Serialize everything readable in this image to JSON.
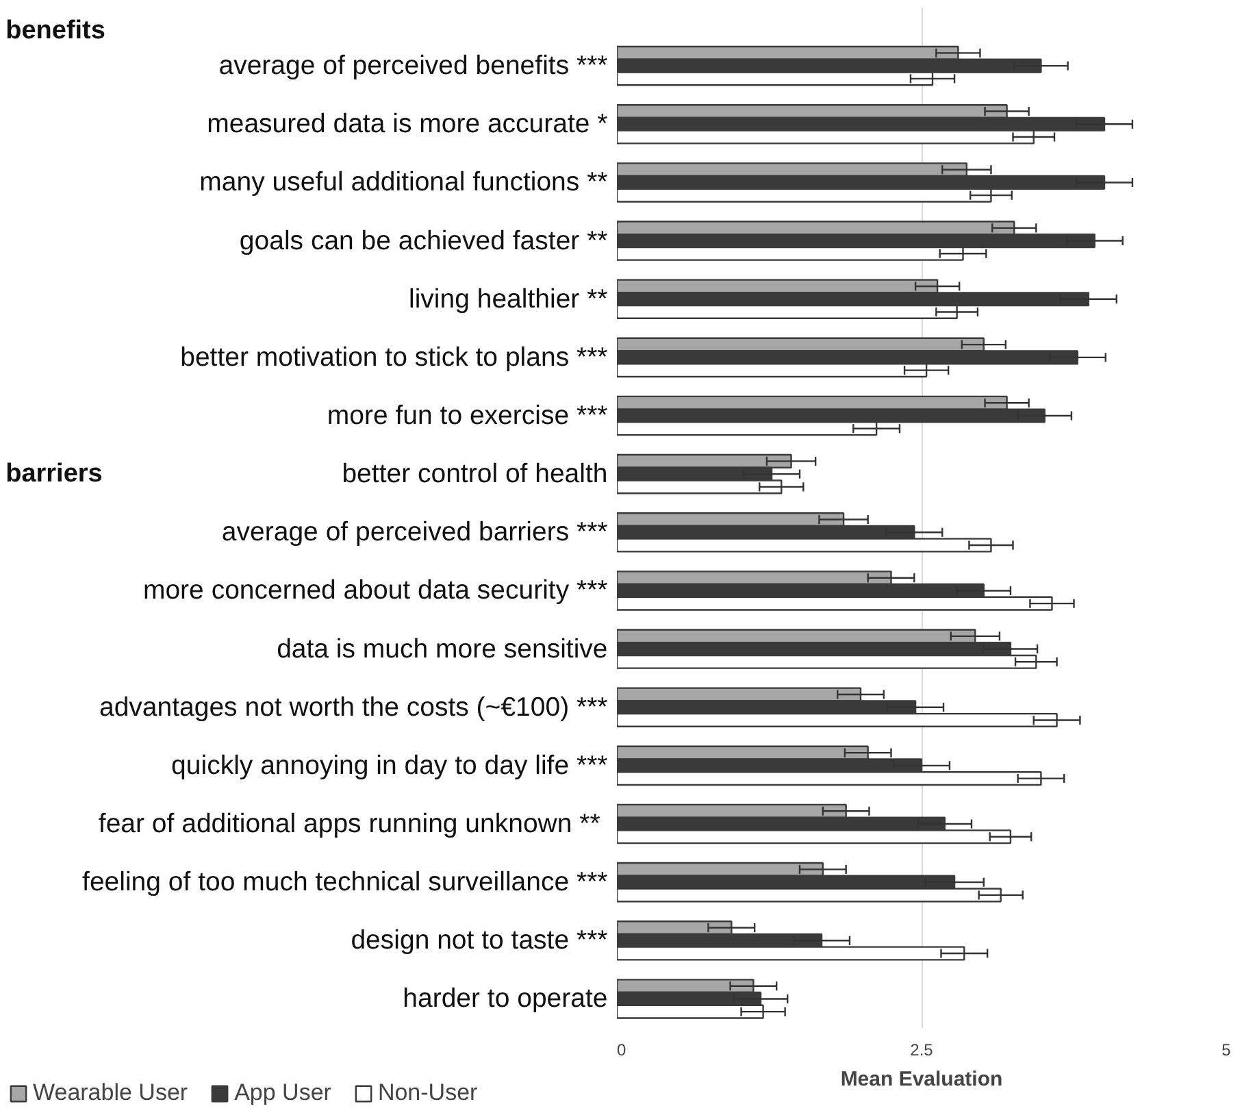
{
  "chart_data": {
    "type": "bar",
    "orientation": "horizontal",
    "categories": [
      "average of perceived benefits ***",
      "measured data is more accurate *",
      "many useful additional functions **",
      "goals can be achieved faster **",
      "living healthier **",
      "better motivation to stick to plans ***",
      "more fun to exercise ***",
      "better control of health",
      "average of perceived barriers ***",
      "more concerned about data security ***",
      "data is much more sensitive",
      "advantages not worth the costs (~€100) ***",
      "quickly annoying in day to day life ***",
      "fear of additional apps running unknown  **",
      "feeling of too much technical surveillance ***",
      "design not to taste ***",
      "harder to operate"
    ],
    "series": [
      {
        "name": "Wearable User",
        "color": "#a6a6a6",
        "values": [
          2.8,
          3.2,
          2.87,
          3.26,
          2.63,
          3.01,
          3.2,
          1.43,
          1.86,
          2.25,
          2.94,
          2.0,
          2.06,
          1.88,
          1.69,
          0.94,
          1.12
        ],
        "errors": [
          0.18,
          0.18,
          0.2,
          0.18,
          0.18,
          0.18,
          0.18,
          0.2,
          0.2,
          0.19,
          0.2,
          0.19,
          0.19,
          0.19,
          0.19,
          0.19,
          0.19
        ]
      },
      {
        "name": "App User",
        "color": "#3a3a3a",
        "values": [
          3.48,
          4.0,
          4.0,
          3.92,
          3.87,
          3.78,
          3.51,
          1.27,
          2.44,
          3.01,
          3.23,
          2.45,
          2.5,
          2.69,
          2.77,
          1.68,
          1.18
        ],
        "errors": [
          0.22,
          0.23,
          0.23,
          0.23,
          0.23,
          0.23,
          0.22,
          0.23,
          0.23,
          0.22,
          0.22,
          0.23,
          0.23,
          0.22,
          0.24,
          0.23,
          0.22
        ]
      },
      {
        "name": "Non-User",
        "color": "#ffffff",
        "values": [
          2.59,
          3.42,
          3.07,
          2.84,
          2.79,
          2.54,
          2.13,
          1.35,
          3.07,
          3.57,
          3.44,
          3.61,
          3.48,
          3.23,
          3.15,
          2.85,
          1.2
        ],
        "errors": [
          0.18,
          0.17,
          0.17,
          0.19,
          0.17,
          0.18,
          0.19,
          0.18,
          0.18,
          0.18,
          0.17,
          0.19,
          0.19,
          0.17,
          0.18,
          0.19,
          0.18
        ]
      }
    ],
    "xlabel": "Mean Evaluation",
    "xlim": [
      0,
      5
    ],
    "xticks": [
      0,
      2.5,
      5
    ],
    "grid": "x",
    "legend": "bottom left",
    "annotations": [
      "benefits",
      "barriers"
    ]
  }
}
